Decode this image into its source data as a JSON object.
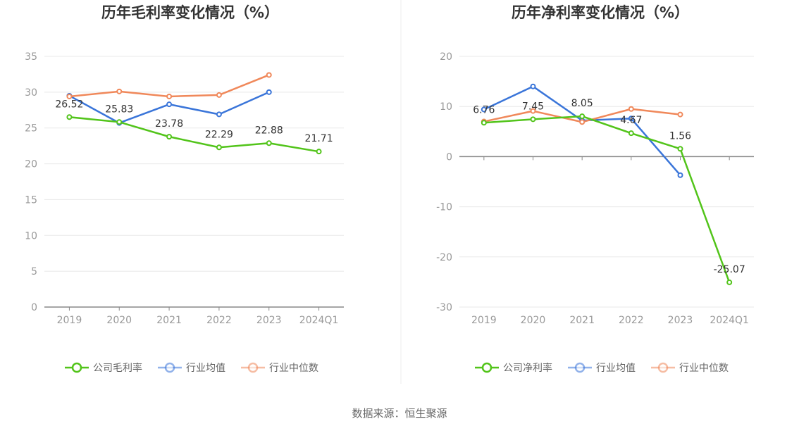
{
  "source_label": "数据来源：恒生聚源",
  "chart_data": [
    {
      "type": "line",
      "title": "历年毛利率变化情况（%）",
      "categories": [
        "2019",
        "2020",
        "2021",
        "2022",
        "2023",
        "2024Q1"
      ],
      "ylim": [
        0,
        35
      ],
      "yticks": [
        0,
        5,
        10,
        15,
        20,
        25,
        30,
        35
      ],
      "grid": true,
      "legend_position": "bottom",
      "series": [
        {
          "name": "公司毛利率",
          "color": "#52c41a",
          "values": [
            26.52,
            25.83,
            23.78,
            22.29,
            22.88,
            21.71
          ],
          "labels": [
            "26.52",
            "25.83",
            "23.78",
            "22.29",
            "22.88",
            "21.71"
          ]
        },
        {
          "name": "行业均值",
          "color": "#3a75d9",
          "values": [
            29.5,
            25.7,
            28.3,
            26.9,
            30.0,
            null
          ]
        },
        {
          "name": "行业中位数",
          "color": "#f0885a",
          "values": [
            29.4,
            30.1,
            29.4,
            29.6,
            32.4,
            null
          ]
        }
      ]
    },
    {
      "type": "line",
      "title": "历年净利率变化情况（%）",
      "categories": [
        "2019",
        "2020",
        "2021",
        "2022",
        "2023",
        "2024Q1"
      ],
      "ylim": [
        -30,
        20
      ],
      "yticks": [
        -30,
        -20,
        -10,
        0,
        10,
        20
      ],
      "grid": true,
      "legend_position": "bottom",
      "series": [
        {
          "name": "公司净利率",
          "color": "#52c41a",
          "values": [
            6.76,
            7.45,
            8.05,
            4.67,
            1.56,
            -25.07
          ],
          "labels": [
            "6.76",
            "7.45",
            "8.05",
            "4.67",
            "1.56",
            "-25.07"
          ]
        },
        {
          "name": "行业均值",
          "color": "#3a75d9",
          "values": [
            9.4,
            14.0,
            7.2,
            7.6,
            -3.7,
            null
          ]
        },
        {
          "name": "行业中位数",
          "color": "#f0885a",
          "values": [
            7.0,
            9.1,
            6.9,
            9.5,
            8.4,
            null
          ]
        }
      ]
    }
  ]
}
